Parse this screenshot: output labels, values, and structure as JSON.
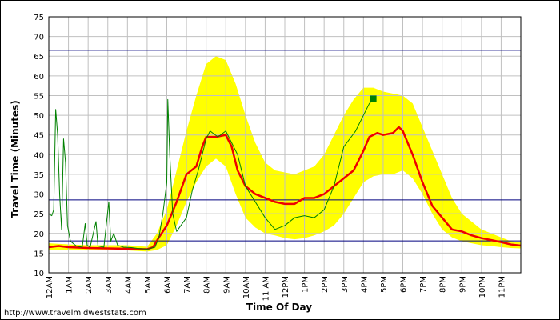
{
  "chart_data": {
    "type": "line",
    "xlabel": "Time Of Day",
    "ylabel": "Travel Time (Minutes)",
    "source_credit": "http://www.travelmidweststats.com",
    "x_unit": "hour_of_day",
    "xlim": [
      0,
      24
    ],
    "ylim": [
      10,
      75
    ],
    "grid": true,
    "colors": {
      "band": "#ffff00",
      "average": "#ee0000",
      "current": "#008000",
      "reference": "#00007f",
      "grid": "#c0c0c0",
      "plot_border": "#000000"
    },
    "x_ticks": [
      {
        "x": 0,
        "label": "12AM"
      },
      {
        "x": 1,
        "label": "1AM"
      },
      {
        "x": 2,
        "label": "2AM"
      },
      {
        "x": 3,
        "label": "3AM"
      },
      {
        "x": 4,
        "label": "4AM"
      },
      {
        "x": 5,
        "label": "5AM"
      },
      {
        "x": 6,
        "label": "6AM"
      },
      {
        "x": 7,
        "label": "7AM"
      },
      {
        "x": 8,
        "label": "8AM"
      },
      {
        "x": 9,
        "label": "9AM"
      },
      {
        "x": 10,
        "label": "10AM"
      },
      {
        "x": 11,
        "label": "11 AM"
      },
      {
        "x": 12,
        "label": "12PM"
      },
      {
        "x": 13,
        "label": "1PM"
      },
      {
        "x": 14,
        "label": "2PM"
      },
      {
        "x": 15,
        "label": "3PM"
      },
      {
        "x": 16,
        "label": "4PM"
      },
      {
        "x": 17,
        "label": "5PM"
      },
      {
        "x": 18,
        "label": "6PM"
      },
      {
        "x": 19,
        "label": "7PM"
      },
      {
        "x": 20,
        "label": "8PM"
      },
      {
        "x": 21,
        "label": "9PM"
      },
      {
        "x": 22,
        "label": "10PM"
      },
      {
        "x": 23,
        "label": "11PM"
      }
    ],
    "y_ticks": [
      "10",
      "15",
      "20",
      "25",
      "30",
      "35",
      "40",
      "45",
      "50",
      "55",
      "60",
      "65",
      "70",
      "75"
    ],
    "reference_lines": [
      66.5,
      28.5,
      18.1
    ],
    "band": {
      "upper": [
        [
          0,
          17.5
        ],
        [
          1,
          17.2
        ],
        [
          2,
          17
        ],
        [
          3,
          17
        ],
        [
          4,
          17
        ],
        [
          5,
          16.6
        ],
        [
          5.5,
          20
        ],
        [
          6,
          26
        ],
        [
          6.5,
          36
        ],
        [
          7,
          46
        ],
        [
          7.5,
          55
        ],
        [
          8,
          63
        ],
        [
          8.5,
          65
        ],
        [
          9,
          64
        ],
        [
          9.5,
          58
        ],
        [
          10,
          50
        ],
        [
          10.5,
          43
        ],
        [
          11,
          38
        ],
        [
          11.5,
          36
        ],
        [
          12,
          35.5
        ],
        [
          12.5,
          35
        ],
        [
          13,
          36
        ],
        [
          13.5,
          37
        ],
        [
          14,
          40
        ],
        [
          14.5,
          45
        ],
        [
          15,
          50
        ],
        [
          15.5,
          54
        ],
        [
          16,
          57
        ],
        [
          16.5,
          57
        ],
        [
          17,
          56
        ],
        [
          17.5,
          55.5
        ],
        [
          18,
          55
        ],
        [
          18.5,
          53
        ],
        [
          19,
          47
        ],
        [
          19.5,
          41
        ],
        [
          20,
          35
        ],
        [
          20.5,
          29
        ],
        [
          21,
          25
        ],
        [
          21.5,
          23
        ],
        [
          22,
          21
        ],
        [
          22.5,
          20
        ],
        [
          23,
          19
        ],
        [
          23.5,
          18
        ],
        [
          24,
          17.8
        ]
      ],
      "lower": [
        [
          0,
          15.8
        ],
        [
          1,
          15.8
        ],
        [
          2,
          15.7
        ],
        [
          3,
          15.7
        ],
        [
          4,
          15.7
        ],
        [
          5,
          15.4
        ],
        [
          5.5,
          15.8
        ],
        [
          6,
          17
        ],
        [
          6.5,
          22
        ],
        [
          7,
          28
        ],
        [
          7.5,
          33
        ],
        [
          8,
          37
        ],
        [
          8.5,
          39
        ],
        [
          9,
          37
        ],
        [
          9.5,
          30
        ],
        [
          10,
          24
        ],
        [
          10.5,
          21.5
        ],
        [
          11,
          20
        ],
        [
          11.5,
          19.5
        ],
        [
          12,
          18.8
        ],
        [
          12.5,
          18.5
        ],
        [
          13,
          18.8
        ],
        [
          13.5,
          19.5
        ],
        [
          14,
          20.5
        ],
        [
          14.5,
          22
        ],
        [
          15,
          25
        ],
        [
          15.5,
          29
        ],
        [
          16,
          33
        ],
        [
          16.5,
          34.5
        ],
        [
          17,
          35
        ],
        [
          17.5,
          35
        ],
        [
          18,
          36
        ],
        [
          18.5,
          34
        ],
        [
          19,
          30
        ],
        [
          19.5,
          25
        ],
        [
          20,
          21
        ],
        [
          20.5,
          19
        ],
        [
          21,
          18
        ],
        [
          21.5,
          17.5
        ],
        [
          22,
          17
        ],
        [
          22.5,
          16.8
        ],
        [
          23,
          16.5
        ],
        [
          23.5,
          16.3
        ],
        [
          24,
          16.2
        ]
      ]
    },
    "series": [
      {
        "name": "",
        "role": "average",
        "values": [
          [
            0,
            16.5
          ],
          [
            0.5,
            16.8
          ],
          [
            1,
            16.5
          ],
          [
            2,
            16.3
          ],
          [
            3,
            16.2
          ],
          [
            4,
            16.1
          ],
          [
            5,
            16
          ],
          [
            5.3,
            16.5
          ],
          [
            5.6,
            19
          ],
          [
            6,
            22
          ],
          [
            6.5,
            28
          ],
          [
            7,
            35
          ],
          [
            7.5,
            37
          ],
          [
            7.8,
            42
          ],
          [
            8,
            44.5
          ],
          [
            8.5,
            44.5
          ],
          [
            9,
            45
          ],
          [
            9.3,
            42
          ],
          [
            9.6,
            36
          ],
          [
            10,
            32
          ],
          [
            10.5,
            30
          ],
          [
            11,
            29
          ],
          [
            11.5,
            28
          ],
          [
            12,
            27.5
          ],
          [
            12.5,
            27.5
          ],
          [
            13,
            29
          ],
          [
            13.5,
            29
          ],
          [
            14,
            30
          ],
          [
            14.5,
            32
          ],
          [
            15,
            34
          ],
          [
            15.5,
            36
          ],
          [
            16,
            41
          ],
          [
            16.3,
            44.5
          ],
          [
            16.7,
            45.5
          ],
          [
            17,
            45
          ],
          [
            17.5,
            45.5
          ],
          [
            17.8,
            47
          ],
          [
            18,
            46
          ],
          [
            18.5,
            40
          ],
          [
            19,
            33
          ],
          [
            19.5,
            27
          ],
          [
            20,
            24
          ],
          [
            20.5,
            21
          ],
          [
            21,
            20.5
          ],
          [
            21.5,
            19.5
          ],
          [
            22,
            18.8
          ],
          [
            22.5,
            18.3
          ],
          [
            23,
            17.8
          ],
          [
            23.5,
            17.2
          ],
          [
            24,
            16.9
          ]
        ]
      },
      {
        "name": "",
        "role": "current",
        "values": [
          [
            0,
            25
          ],
          [
            0.15,
            24.5
          ],
          [
            0.25,
            26
          ],
          [
            0.35,
            51.5
          ],
          [
            0.45,
            45
          ],
          [
            0.55,
            30
          ],
          [
            0.65,
            21
          ],
          [
            0.75,
            44
          ],
          [
            0.85,
            38
          ],
          [
            0.95,
            22
          ],
          [
            1.1,
            18
          ],
          [
            1.4,
            16.8
          ],
          [
            1.7,
            16.5
          ],
          [
            1.85,
            22.5
          ],
          [
            1.95,
            17
          ],
          [
            2.1,
            16.5
          ],
          [
            2.4,
            23
          ],
          [
            2.5,
            16.8
          ],
          [
            2.8,
            16.5
          ],
          [
            3.05,
            28
          ],
          [
            3.15,
            18
          ],
          [
            3.3,
            20
          ],
          [
            3.5,
            17
          ],
          [
            3.8,
            16.5
          ],
          [
            4.2,
            16.4
          ],
          [
            4.5,
            16.2
          ],
          [
            5,
            16
          ],
          [
            5.4,
            16.5
          ],
          [
            5.6,
            19
          ],
          [
            5.8,
            25
          ],
          [
            6,
            33
          ],
          [
            6.05,
            54
          ],
          [
            6.15,
            40
          ],
          [
            6.3,
            25
          ],
          [
            6.5,
            20.5
          ],
          [
            7,
            24
          ],
          [
            7.3,
            31
          ],
          [
            7.6,
            36
          ],
          [
            8,
            44
          ],
          [
            8.2,
            46
          ],
          [
            8.6,
            44.5
          ],
          [
            9,
            46
          ],
          [
            9.2,
            44
          ],
          [
            9.6,
            40
          ],
          [
            10,
            32
          ],
          [
            10.5,
            28
          ],
          [
            11,
            24
          ],
          [
            11.5,
            21
          ],
          [
            12,
            22
          ],
          [
            12.5,
            24
          ],
          [
            13,
            24.5
          ],
          [
            13.5,
            24
          ],
          [
            14,
            26
          ],
          [
            14.5,
            32
          ],
          [
            14.8,
            38
          ],
          [
            15,
            42
          ],
          [
            15.3,
            44
          ],
          [
            15.6,
            46
          ],
          [
            16,
            50
          ],
          [
            16.3,
            53
          ],
          [
            16.5,
            54
          ]
        ]
      }
    ],
    "marker": {
      "x": 16.5,
      "y": 54.2,
      "shape": "square"
    }
  }
}
